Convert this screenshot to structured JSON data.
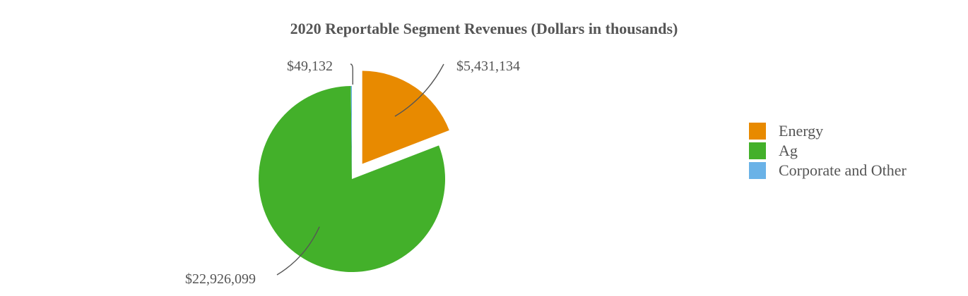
{
  "chart_data": {
    "type": "pie",
    "title": "2020 Reportable Segment Revenues (Dollars in thousands)",
    "categories": [
      "Energy",
      "Ag",
      "Corporate and Other"
    ],
    "values": [
      5431134,
      22926099,
      49132
    ],
    "value_labels": [
      "$5,431,134",
      "$22,926,099",
      "$49,132"
    ],
    "colors": [
      "#E88A00",
      "#43B02A",
      "#6AB2E7"
    ],
    "exploded": [
      true,
      false,
      false
    ],
    "start_angle_deg": 0,
    "direction": "clockwise",
    "legend": {
      "position": "right",
      "entries": [
        "Energy",
        "Ag",
        "Corporate and Other"
      ]
    }
  }
}
